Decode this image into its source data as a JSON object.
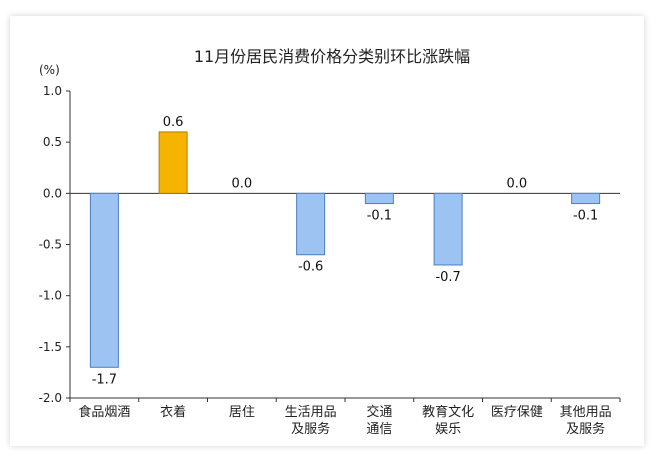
{
  "chart_data": {
    "type": "bar",
    "title": "11月份居民消费价格分类别环比涨跌幅",
    "unit": "(%)",
    "ylim": [
      -2.0,
      1.0
    ],
    "yticks": [
      "1.0",
      "0.5",
      "0.0",
      "-0.5",
      "-1.0",
      "-1.5",
      "-2.0"
    ],
    "categories": [
      [
        "食品烟酒"
      ],
      [
        "衣着"
      ],
      [
        "居住"
      ],
      [
        "生活用品",
        "及服务"
      ],
      [
        "交通",
        "通信"
      ],
      [
        "教育文化",
        "娱乐"
      ],
      [
        "医疗保健"
      ],
      [
        "其他用品",
        "及服务"
      ]
    ],
    "values": [
      -1.7,
      0.6,
      0.0,
      -0.6,
      -0.1,
      -0.7,
      0.0,
      -0.1
    ],
    "data_labels": [
      "-1.7",
      "0.6",
      "0.0",
      "-0.6",
      "-0.1",
      "-0.7",
      "0.0",
      "-0.1"
    ],
    "colors": {
      "negative_fill": "#9dc3f2",
      "negative_stroke": "#4a7fc1",
      "positive_fill": "#f5b400",
      "positive_stroke": "#b07f00",
      "axis": "#333333"
    },
    "grid": false,
    "legend": "none"
  }
}
